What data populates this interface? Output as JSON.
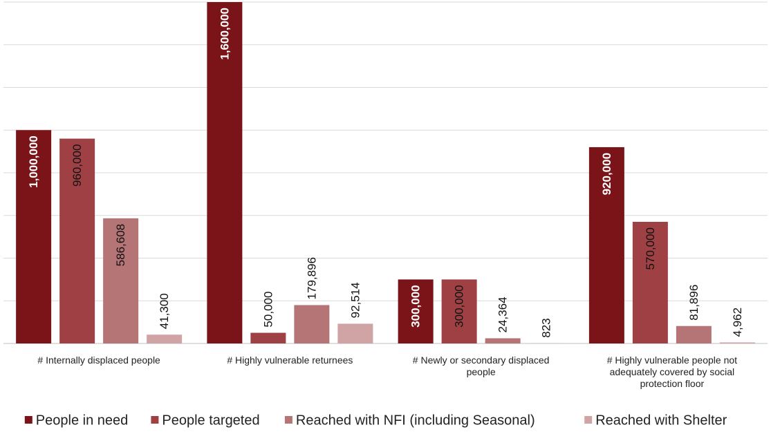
{
  "chart_data": {
    "type": "bar",
    "title": "",
    "xlabel": "",
    "ylabel": "",
    "ylim": [
      0,
      1600000
    ],
    "grid": true,
    "legend_position": "bottom",
    "categories": [
      [
        "# Internally displaced people"
      ],
      [
        "# Highly vulnerable returnees"
      ],
      [
        "# Newly or secondary displaced",
        "people"
      ],
      [
        "# Highly vulnerable people not",
        "adequately covered by social",
        "protection floor"
      ]
    ],
    "series": [
      {
        "name": "People in need",
        "color": "#7b1419",
        "label_color": "#ffffff",
        "bold": true,
        "values": [
          1000000,
          1600000,
          300000,
          920000
        ],
        "labels": [
          "1,000,000",
          "1,600,000",
          "300,000",
          "920,000"
        ]
      },
      {
        "name": "People targeted",
        "color": "#9e4044",
        "label_color": "#111111",
        "bold": false,
        "values": [
          960000,
          50000,
          300000,
          570000
        ],
        "labels": [
          "960,000",
          "50,000",
          "300,000",
          "570,000"
        ]
      },
      {
        "name": "Reached with NFI (including Seasonal)",
        "color": "#b57476",
        "label_color": "#111111",
        "bold": false,
        "values": [
          586608,
          179896,
          24364,
          81896
        ],
        "labels": [
          "586,608",
          "179,896",
          "24,364",
          "81,896"
        ]
      },
      {
        "name": "Reached with Shelter",
        "color": "#d0a4a5",
        "label_color": "#111111",
        "bold": false,
        "values": [
          41300,
          92514,
          823,
          4962
        ],
        "labels": [
          "41,300",
          "92,514",
          "823",
          "4,962"
        ]
      }
    ]
  }
}
